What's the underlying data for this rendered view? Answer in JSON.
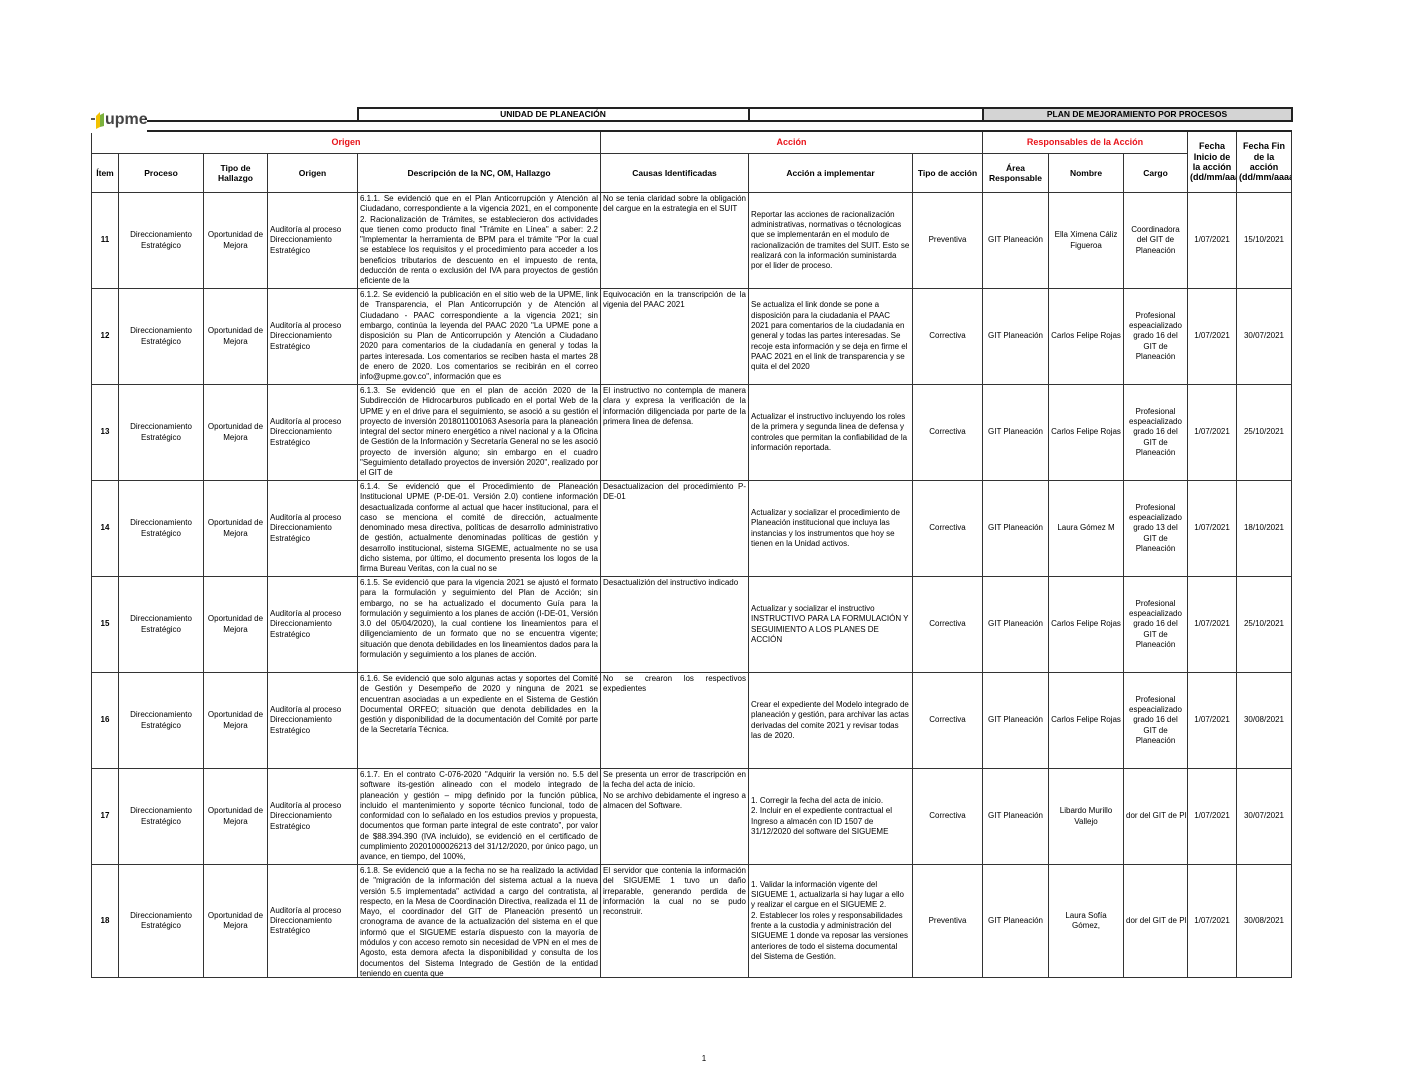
{
  "header": {
    "logo_text": "upme",
    "unit_title": "UNIDAD DE PLANEACIÓN",
    "plan_title": "PLAN DE MEJORAMIENTO POR PROCESOS"
  },
  "groups": {
    "origen": "Origen",
    "accion": "Acción",
    "responsables": "Responsables de la Acción",
    "fecha_inicio": "Fecha Inicio de la acción (dd/mm/aaaa)",
    "fecha_fin": "Fecha Fin de la acción (dd/mm/aaaa)"
  },
  "columns": [
    "Ítem",
    "Proceso",
    "Tipo de Hallazgo",
    "Origen",
    "Descripción de la NC, OM, Hallazgo",
    "Causas Identificadas",
    "Acción a implementar",
    "Tipo de acción",
    "Área Responsable",
    "Nombre",
    "Cargo"
  ],
  "colors": {
    "group_header": "#e8141b",
    "title_bar": "#d4d4d4"
  },
  "rows": [
    {
      "item": "11",
      "proceso": "Direccionamiento Estratégico",
      "tipo": "Oportunidad de Mejora",
      "origen": "Auditoría al proceso Direccionamiento Estratégico",
      "descripcion": "6.1.1. Se evidenció que en el Plan Anticorrupción y Atención al Ciudadano, correspondiente a la vigencia 2021, en el componente 2. Racionalización de Trámites, se establecieron dos actividades que tienen como producto final \"Trámite en Línea\" a saber: 2.2 \"Implementar la herramienta de BPM para el trámite \"Por la cual se establece los requisitos y el procedimiento para acceder a los beneficios tributarios de descuento en el impuesto de renta, deducción de renta o exclusión del IVA para proyectos de gestión eficiente de la",
      "causas": "No se tenia claridad sobre la obligación del cargue en la estrategia en el SUIT",
      "accion": "Reportar las acciones de racionalización administrativas, normativas o técnologicas que se implementarán en el modulo de racionalización de tramites del SUIT. Esto se realizará con la información suministarda por el lider de proceso.",
      "tipo_accion": "Preventiva",
      "area": "GIT Planeación",
      "nombre": "Ella Ximena Cáliz Figueroa",
      "cargo": "Coordinadora del GIT de Planeación",
      "inicio": "1/07/2021",
      "fin": "15/10/2021"
    },
    {
      "item": "12",
      "proceso": "Direccionamiento Estratégico",
      "tipo": "Oportunidad de Mejora",
      "origen": "Auditoría al proceso Direccionamiento Estratégico",
      "descripcion": "6.1.2. Se evidenció la publicación en el sitio web de la UPME, link de Transparencia, el Plan Anticorrupción y de Atención al Ciudadano - PAAC correspondiente a la vigencia 2021; sin embargo, continúa la leyenda del PAAC 2020 \"La UPME pone a disposición su Plan de Anticorrupción y Atención a Ciudadano 2020 para comentarios de la ciudadanía en general y todas la partes interesada. Los comentarios se reciben hasta el martes 28 de enero de 2020. Los comentarios se recibirán en el correo info@upme.gov.co\", información que es",
      "causas": "Equivocación en la transcripción de la vigenia del PAAC 2021",
      "accion": "Se actualiza el link donde se pone a disposición para la ciudadania el PAAC 2021 para comentarios de la ciudadania en general y todas las partes interesadas. Se recoje esta información y se deja en firme el PAAC 2021 en el link de transparencia y se quita el del 2020",
      "tipo_accion": "Correctiva",
      "area": "GIT Planeación",
      "nombre": "Carlos Felipe Rojas",
      "cargo": "Profesional espeacializado grado 16 del GIT de Planeación",
      "inicio": "1/07/2021",
      "fin": "30/07/2021"
    },
    {
      "item": "13",
      "proceso": "Direccionamiento Estratégico",
      "tipo": "Oportunidad de Mejora",
      "origen": "Auditoría al proceso Direccionamiento Estratégico",
      "descripcion": "6.1.3. Se evidenció que en el plan de acción 2020 de la Subdirección de Hidrocarburos publicado en el portal Web de la UPME y en el drive para el seguimiento, se asoció a su gestión el proyecto de inversión 2018011001063 Asesoría para la planeación integral del sector minero energético a nivel nacional y a la Oficina de Gestión de la Información y Secretaría General no se les asoció proyecto de inversión alguno; sin embargo en el cuadro \"Seguimiento detallado proyectos de inversión 2020\", realizado por el GIT de",
      "causas": "El instructivo no contempla de manera clara y expresa la verificación de la información diligenciada por parte de la primera linea de defensa.",
      "accion": "Actualizar el instructivo incluyendo los roles de la primera y segunda linea de defensa y controles que permitan la confiabilidad de la información reportada.",
      "tipo_accion": "Correctiva",
      "area": "GIT Planeación",
      "nombre": "Carlos Felipe Rojas",
      "cargo": "Profesional espeacializado grado 16 del GIT de Planeación",
      "inicio": "1/07/2021",
      "fin": "25/10/2021"
    },
    {
      "item": "14",
      "proceso": "Direccionamiento Estratégico",
      "tipo": "Oportunidad de Mejora",
      "origen": "Auditoría al proceso Direccionamiento Estratégico",
      "descripcion": "6.1.4. Se evidenció que el Procedimiento de Planeación Institucional UPME (P-DE-01. Versión 2.0) contiene información desactualizada conforme al actual que hacer institucional, para el caso se menciona el comité de dirección, actualmente denominado mesa directiva, políticas de desarrollo administrativo de gestión, actualmente denominadas políticas de gestión y desarrollo institucional, sistema SIGEME, actualmente no se usa dicho sistema, por último, el documento presenta los logos de la firma Bureau Veritas, con la cual no se",
      "causas": "Desactualizacion del procedimiento P-DE-01",
      "accion": "Actualizar y socializar el procedimiento de Planeación institucional que incluya las instancias y los instrumentos que hoy se tienen en la Unidad activos.",
      "tipo_accion": "Correctiva",
      "area": "GIT Planeación",
      "nombre": "Laura Gómez M",
      "cargo": "Profesional espeacializado grado 13 del GIT de Planeación",
      "inicio": "1/07/2021",
      "fin": "18/10/2021"
    },
    {
      "item": "15",
      "proceso": "Direccionamiento Estratégico",
      "tipo": "Oportunidad de Mejora",
      "origen": "Auditoría al proceso Direccionamiento Estratégico",
      "descripcion": "6.1.5. Se evidenció que para la vigencia 2021 se ajustó el formato para la formulación y seguimiento del Plan de Acción; sin embargo, no se ha actualizado el documento Guía para la formulación y seguimiento a los planes de acción (I-DE-01, Versión 3.0 del 05/04/2020), la cual contiene los lineamientos para el diligenciamiento de un formato que no se encuentra vigente; situación que denota debilidades en los lineamientos dados para la formulación y seguimiento a los planes de acción.",
      "causas": "Desactualizión del instructivo indicado",
      "accion": "Actualizar y socializar el instructivo INSTRUCTIVO PARA LA FORMULACIÓN Y SEGUIMIENTO A LOS PLANES DE ACCIÓN",
      "tipo_accion": "Correctiva",
      "area": "GIT Planeación",
      "nombre": "Carlos Felipe Rojas",
      "cargo": "Profesional espeacializado grado 16 del GIT de Planeación",
      "inicio": "1/07/2021",
      "fin": "25/10/2021"
    },
    {
      "item": "16",
      "proceso": "Direccionamiento Estratégico",
      "tipo": "Oportunidad de Mejora",
      "origen": "Auditoría al proceso Direccionamiento Estratégico",
      "descripcion": "6.1.6. Se evidenció que solo algunas actas y soportes del Comité de Gestión y Desempeño de 2020 y ninguna de 2021 se encuentran asociadas a un expediente en el Sistema de Gestión Documental ORFEO; situación que denota debilidades en la gestión y disponibilidad de la documentación del Comité por parte de la Secretaría Técnica.",
      "causas": "No se crearon los respectivos expedientes",
      "accion": "Crear el expediente del Modelo integrado de planeación y gestión, para archivar las actas derivadas del comite 2021 y revisar todas las de 2020.",
      "tipo_accion": "Correctiva",
      "area": "GIT Planeación",
      "nombre": "Carlos Felipe Rojas",
      "cargo": "Profesional espeacializado grado 16 del GIT de Planeación",
      "inicio": "1/07/2021",
      "fin": "30/08/2021"
    },
    {
      "item": "17",
      "proceso": "Direccionamiento Estratégico",
      "tipo": "Oportunidad de Mejora",
      "origen": "Auditoría al proceso Direccionamiento Estratégico",
      "descripcion": "6.1.7. En el contrato C-076-2020 \"Adquirir la versión no. 5.5 del software its-gestión alineado con el modelo integrado de planeación y gestión – mipg definido por la función pública, incluido el mantenimiento y soporte técnico funcional, todo de conformidad con lo señalado en los estudios previos y propuesta, documentos que forman parte integral de este contrato\", por valor de $88.394.390 (IVA incluido), se evidenció en el certificado de cumplimiento 20201000026213 del 31/12/2020, por único pago, un avance, en tiempo, del 100%,",
      "causas": "Se presenta un error de trascripción en la fecha del acta de inicio.\nNo se archivo debidamente el ingreso a almacen del Software.",
      "accion": "1. Corregir la fecha del acta de inicio.\n2. Incluir en el expediente contractual el Ingreso a almacén con ID 1507 de 31/12/2020 del software del SIGUEME",
      "tipo_accion": "Correctiva",
      "area": "GIT Planeación",
      "nombre": "Libardo Murillo Vallejo",
      "cargo": "dor del GIT de Pl",
      "inicio": "1/07/2021",
      "fin": "30/07/2021"
    },
    {
      "item": "18",
      "proceso": "Direccionamiento Estratégico",
      "tipo": "Oportunidad de Mejora",
      "origen": "Auditoría al proceso Direccionamiento Estratégico",
      "descripcion": "6.1.8. Se evidenció que a la fecha no se ha realizado la actividad de \"migración de la información del sistema actual a la nueva versión 5.5 implementada\" actividad a cargo del contratista, al respecto, en la Mesa de Coordinación Directiva, realizada el 11 de Mayo, el coordinador del GIT de Planeación presentó un cronograma de avance de la actualización del sistema en el que informó que el SIGUEME estaría dispuesto con la mayoría de módulos y con acceso remoto sin necesidad de VPN en el mes de Agosto, esta demora afecta la disponibilidad y consulta de los documentos del Sistema Integrado de Gestión de la entidad teniendo en cuenta que",
      "causas": "El servidor que contenia la información del SIGUEME 1 tuvo un daño irreparable, generando perdida de información la cual no se pudo reconstruir.",
      "accion": "1. Validar la información vigente del SIGUEME 1, actualizarla si hay lugar a ello y realizar el cargue en el SIGUEME 2.\n2. Establecer los roles y responsabilidades frente a la custodia y administración del SIGUEME 1 donde va reposar las versiones anteriores de todo el sistema documental del Sistema de Gestión.",
      "tipo_accion": "Preventiva",
      "area": "GIT Planeación",
      "nombre": "Laura Sofía Gómez,",
      "cargo": "dor del GIT de Pl",
      "inicio": "1/07/2021",
      "fin": "30/08/2021"
    }
  ],
  "footer": {
    "page_number": "1"
  }
}
